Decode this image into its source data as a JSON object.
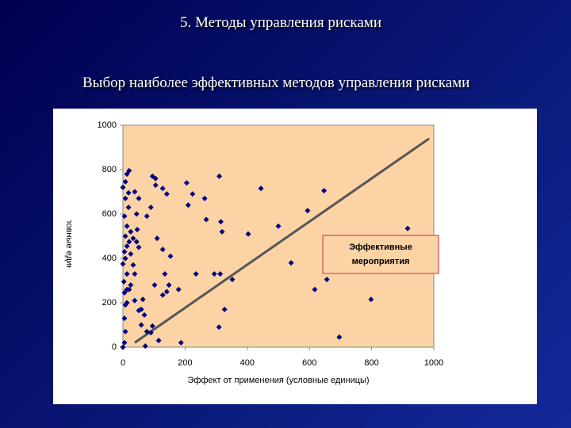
{
  "slide": {
    "title": "5. Методы управления рисками",
    "subtitle": "Выбор наиболее эффективных методов управления рисками"
  },
  "chart_data": {
    "type": "scatter",
    "xlabel": "Эффект от применения (условные единицы)",
    "ylabel": "Цена (условные единицы)",
    "annotation": "Эффективные мероприятия",
    "xlim": [
      0,
      1000
    ],
    "ylim": [
      0,
      1000
    ],
    "xticks": [
      0,
      200,
      400,
      600,
      800,
      1000
    ],
    "yticks": [
      0,
      200,
      400,
      600,
      800,
      1000
    ],
    "plot_color": "#fbd3a5",
    "trend_color": "#555555",
    "trend_line": {
      "x": [
        38,
        985
      ],
      "y": [
        20,
        940
      ]
    },
    "series": [
      {
        "color": "#000080",
        "x": [
          0,
          5,
          8,
          5,
          8,
          13,
          5,
          3,
          13,
          0,
          8,
          5,
          13,
          20,
          8,
          25,
          13,
          5,
          18,
          8,
          0,
          18,
          13,
          20,
          8,
          38,
          51,
          44,
          46,
          33,
          44,
          51,
          25,
          33,
          38,
          25,
          13,
          20,
          38,
          51,
          64,
          59,
          69,
          59,
          77,
          72,
          90,
          95,
          115,
          128,
          141,
          102,
          135,
          148,
          179,
          128,
          153,
          110,
          77,
          90,
          105,
          128,
          141,
          95,
          105,
          205,
          224,
          210,
          268,
          263,
          310,
          315,
          319,
          313,
          294,
          235,
          187,
          309,
          327,
          352,
          403,
          444,
          500,
          541,
          594,
          617,
          647,
          656,
          696,
          798,
          916
        ],
        "values": [
          0,
          20,
          70,
          130,
          190,
          200,
          245,
          295,
          330,
          375,
          400,
          430,
          455,
          475,
          500,
          520,
          545,
          590,
          630,
          670,
          720,
          695,
          780,
          795,
          745,
          700,
          670,
          600,
          530,
          490,
          475,
          450,
          420,
          370,
          330,
          280,
          260,
          260,
          210,
          165,
          215,
          170,
          145,
          100,
          70,
          5,
          65,
          95,
          30,
          235,
          250,
          280,
          330,
          280,
          260,
          440,
          410,
          490,
          590,
          630,
          730,
          715,
          690,
          770,
          760,
          740,
          690,
          640,
          575,
          670,
          770,
          565,
          520,
          330,
          330,
          330,
          20,
          90,
          170,
          305,
          510,
          715,
          545,
          380,
          615,
          260,
          705,
          305,
          45,
          215,
          535
        ]
      }
    ]
  }
}
